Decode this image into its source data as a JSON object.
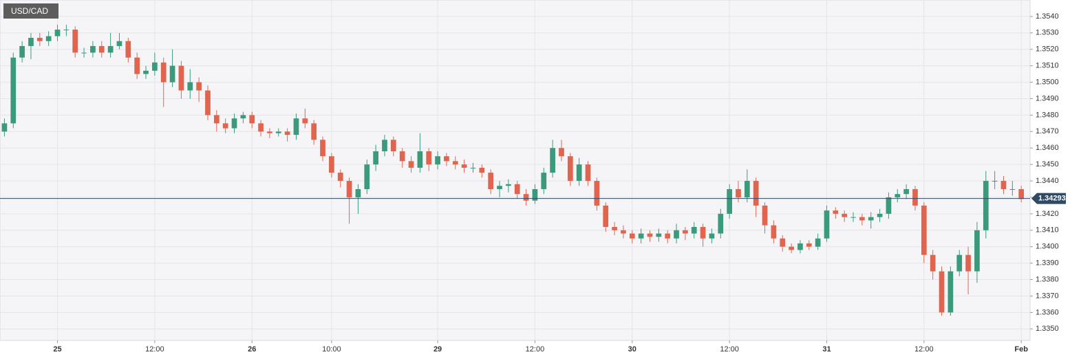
{
  "chart_data": {
    "type": "candlestick",
    "title": "USD/CAD",
    "categories": [
      null,
      null,
      null,
      null,
      null,
      null,
      "25",
      null,
      null,
      null,
      null,
      null,
      null,
      null,
      null,
      null,
      null,
      "12:00",
      null,
      null,
      null,
      null,
      null,
      null,
      null,
      null,
      null,
      null,
      "26",
      null,
      null,
      null,
      null,
      null,
      null,
      null,
      null,
      "10:00",
      null,
      null,
      null,
      null,
      null,
      null,
      null,
      null,
      null,
      null,
      null,
      "29",
      null,
      null,
      null,
      null,
      null,
      null,
      null,
      null,
      null,
      null,
      "12:00",
      null,
      null,
      null,
      null,
      null,
      null,
      null,
      null,
      null,
      null,
      "30",
      null,
      null,
      null,
      null,
      null,
      null,
      null,
      null,
      null,
      null,
      "12:00",
      null,
      null,
      null,
      null,
      null,
      null,
      null,
      null,
      null,
      null,
      "31",
      null,
      null,
      null,
      null,
      null,
      null,
      null,
      null,
      null,
      null,
      "12:00",
      null,
      null,
      null,
      null,
      null,
      null,
      null,
      null,
      null,
      null,
      "Feb"
    ],
    "open": [
      1.347,
      1.3475,
      1.3515,
      1.3522,
      1.3527,
      1.3525,
      1.3528,
      1.3532,
      1.3532,
      1.3518,
      1.3518,
      1.3522,
      1.3518,
      1.3522,
      1.3525,
      1.3515,
      1.3505,
      1.3507,
      1.3512,
      1.35,
      1.351,
      1.3495,
      1.35,
      1.3495,
      1.348,
      1.3475,
      1.3472,
      1.3478,
      1.348,
      1.3475,
      1.347,
      1.3469,
      1.347,
      1.3468,
      1.3478,
      1.3475,
      1.3465,
      1.3455,
      1.3445,
      1.344,
      1.343,
      1.3435,
      1.345,
      1.3458,
      1.3465,
      1.3458,
      1.3452,
      1.3448,
      1.3458,
      1.345,
      1.3455,
      1.3452,
      1.345,
      1.3448,
      1.3448,
      1.3445,
      1.3435,
      1.3437,
      1.3438,
      1.3432,
      1.3428,
      1.3435,
      1.3445,
      1.346,
      1.3455,
      1.344,
      1.345,
      1.344,
      1.3425,
      1.3412,
      1.341,
      1.3408,
      1.3405,
      1.3408,
      1.3406,
      1.3408,
      1.3405,
      1.341,
      1.3408,
      1.3412,
      1.3405,
      1.3408,
      1.342,
      1.3435,
      1.343,
      1.344,
      1.3425,
      1.3413,
      1.3405,
      1.34,
      1.3398,
      1.3402,
      1.34,
      1.3405,
      1.3422,
      1.342,
      1.3418,
      1.3418,
      1.3416,
      1.3418,
      1.342,
      1.343,
      1.3432,
      1.3435,
      1.3425,
      1.3395,
      1.3385,
      1.336,
      1.3385,
      1.3395,
      1.3385,
      1.341,
      1.344,
      1.344,
      1.3435,
      1.3435
    ],
    "high": [
      1.3478,
      1.3518,
      1.3525,
      1.353,
      1.353,
      1.3531,
      1.3535,
      1.3535,
      1.3534,
      1.3521,
      1.3525,
      1.3525,
      1.353,
      1.353,
      1.3527,
      1.3518,
      1.351,
      1.3518,
      1.3515,
      1.352,
      1.3513,
      1.3508,
      1.3503,
      1.3498,
      1.3483,
      1.3478,
      1.3481,
      1.3482,
      1.3482,
      1.3477,
      1.3472,
      1.3472,
      1.3472,
      1.3481,
      1.3484,
      1.3477,
      1.3467,
      1.3457,
      1.3447,
      1.3442,
      1.3438,
      1.3453,
      1.3462,
      1.3468,
      1.3467,
      1.346,
      1.3455,
      1.3469,
      1.346,
      1.3458,
      1.3457,
      1.3455,
      1.3453,
      1.3451,
      1.345,
      1.3447,
      1.344,
      1.3441,
      1.344,
      1.3435,
      1.3438,
      1.3448,
      1.3465,
      1.3465,
      1.3457,
      1.3454,
      1.3452,
      1.3442,
      1.3427,
      1.3415,
      1.3413,
      1.341,
      1.3411,
      1.341,
      1.3411,
      1.341,
      1.3414,
      1.3412,
      1.3415,
      1.3414,
      1.3411,
      1.3423,
      1.3438,
      1.344,
      1.3447,
      1.3442,
      1.3427,
      1.3416,
      1.3407,
      1.3402,
      1.3404,
      1.3404,
      1.3408,
      1.3425,
      1.3424,
      1.3422,
      1.3421,
      1.342,
      1.3421,
      1.3423,
      1.3433,
      1.3435,
      1.3438,
      1.3437,
      1.3427,
      1.3398,
      1.3388,
      1.3388,
      1.3398,
      1.34,
      1.3415,
      1.3446,
      1.3446,
      1.3443,
      1.344,
      1.3437
    ],
    "low": [
      1.3467,
      1.3472,
      1.3512,
      1.3514,
      1.3522,
      1.3522,
      1.3525,
      1.3528,
      1.3515,
      1.3515,
      1.3515,
      1.3515,
      1.3515,
      1.352,
      1.3512,
      1.3502,
      1.3502,
      1.3504,
      1.3485,
      1.3497,
      1.349,
      1.349,
      1.3488,
      1.3477,
      1.347,
      1.3469,
      1.3469,
      1.3475,
      1.3472,
      1.3467,
      1.3466,
      1.3467,
      1.3464,
      1.3465,
      1.3472,
      1.3462,
      1.3452,
      1.3442,
      1.3436,
      1.3414,
      1.342,
      1.3432,
      1.3446,
      1.3455,
      1.3455,
      1.3448,
      1.3445,
      1.3445,
      1.3446,
      1.3447,
      1.3449,
      1.3447,
      1.3445,
      1.3445,
      1.3442,
      1.3432,
      1.343,
      1.3433,
      1.3429,
      1.3425,
      1.3426,
      1.3432,
      1.3442,
      1.3452,
      1.3437,
      1.3437,
      1.3437,
      1.3422,
      1.3409,
      1.3407,
      1.3405,
      1.3402,
      1.3402,
      1.3403,
      1.3403,
      1.3402,
      1.3402,
      1.3404,
      1.3405,
      1.34,
      1.3402,
      1.3405,
      1.3417,
      1.3427,
      1.3427,
      1.3418,
      1.3408,
      1.3402,
      1.3397,
      1.3396,
      1.3396,
      1.3398,
      1.3398,
      1.3403,
      1.3417,
      1.3415,
      1.3415,
      1.3413,
      1.3411,
      1.3415,
      1.3417,
      1.3427,
      1.3429,
      1.3422,
      1.339,
      1.338,
      1.3358,
      1.3358,
      1.3382,
      1.3371,
      1.3378,
      1.3405,
      1.3435,
      1.3432,
      1.3431,
      1.3427
    ],
    "close": [
      1.3475,
      1.3515,
      1.3522,
      1.3527,
      1.3525,
      1.3528,
      1.3532,
      1.3532,
      1.3518,
      1.3518,
      1.3522,
      1.3518,
      1.3522,
      1.3525,
      1.3515,
      1.3505,
      1.3507,
      1.3512,
      1.35,
      1.351,
      1.3495,
      1.35,
      1.3495,
      1.348,
      1.3475,
      1.3472,
      1.3478,
      1.348,
      1.3475,
      1.347,
      1.3469,
      1.347,
      1.3468,
      1.3478,
      1.3475,
      1.3465,
      1.3455,
      1.3445,
      1.344,
      1.343,
      1.3435,
      1.345,
      1.3458,
      1.3465,
      1.3458,
      1.3452,
      1.3448,
      1.3458,
      1.345,
      1.3455,
      1.3452,
      1.345,
      1.3448,
      1.3448,
      1.3445,
      1.3435,
      1.3437,
      1.3438,
      1.3432,
      1.3428,
      1.3435,
      1.3445,
      1.346,
      1.3455,
      1.344,
      1.345,
      1.344,
      1.3425,
      1.3412,
      1.341,
      1.3408,
      1.3405,
      1.3408,
      1.3406,
      1.3408,
      1.3405,
      1.341,
      1.3408,
      1.3412,
      1.3405,
      1.3408,
      1.342,
      1.3435,
      1.343,
      1.344,
      1.3425,
      1.3413,
      1.3405,
      1.34,
      1.3398,
      1.3402,
      1.34,
      1.3405,
      1.3422,
      1.342,
      1.3418,
      1.3418,
      1.3416,
      1.3418,
      1.342,
      1.343,
      1.3432,
      1.3435,
      1.3425,
      1.3395,
      1.3385,
      1.336,
      1.3385,
      1.3395,
      1.3385,
      1.341,
      1.344,
      1.344,
      1.3435,
      1.3435,
      1.3429
    ],
    "up_color": "#3a9a7c",
    "down_color": "#e0644e",
    "last_price": 1.34293,
    "last_price_color": "#2f4a66",
    "ylim": [
      1.3343,
      1.355
    ],
    "yticks": [
      {
        "value": 1.335,
        "label": "1.3350"
      },
      {
        "value": 1.336,
        "label": "1.3360"
      },
      {
        "value": 1.337,
        "label": "1.3370"
      },
      {
        "value": 1.338,
        "label": "1.3380"
      },
      {
        "value": 1.339,
        "label": "1.3390"
      },
      {
        "value": 1.34,
        "label": "1.3400"
      },
      {
        "value": 1.341,
        "label": "1.3410"
      },
      {
        "value": 1.342,
        "label": "1.3420"
      },
      {
        "value": 1.343,
        "label": "1.3430"
      },
      {
        "value": 1.344,
        "label": "1.3440"
      },
      {
        "value": 1.345,
        "label": "1.3450"
      },
      {
        "value": 1.346,
        "label": "1.3460"
      },
      {
        "value": 1.347,
        "label": "1.3470"
      },
      {
        "value": 1.348,
        "label": "1.3480"
      },
      {
        "value": 1.349,
        "label": "1.3490"
      },
      {
        "value": 1.35,
        "label": "1.3500"
      },
      {
        "value": 1.351,
        "label": "1.3510"
      },
      {
        "value": 1.352,
        "label": "1.3520"
      },
      {
        "value": 1.353,
        "label": "1.3530"
      },
      {
        "value": 1.354,
        "label": "1.3540"
      }
    ],
    "grid": true
  }
}
